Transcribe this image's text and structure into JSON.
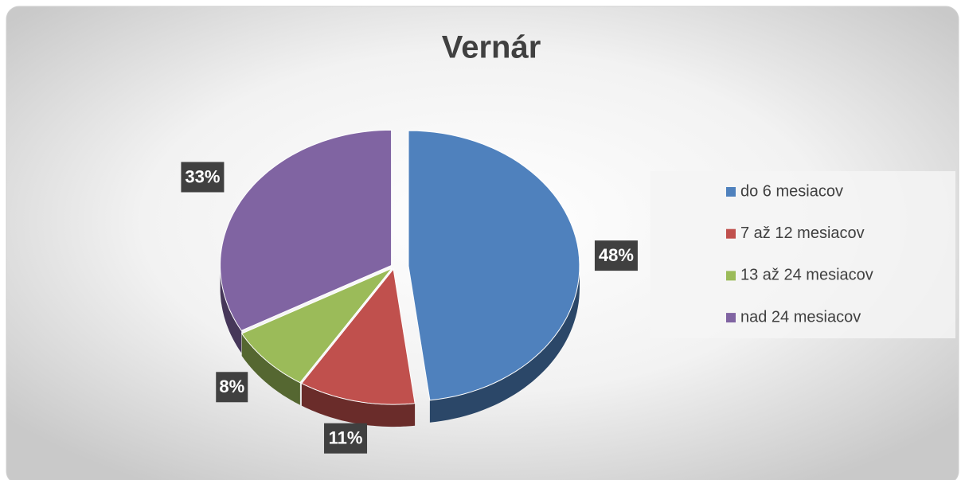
{
  "chart_data": {
    "type": "pie",
    "title": "Vernár",
    "categories": [
      "do 6 mesiacov",
      "7 až 12 mesiacov",
      "13 až 24 mesiacov",
      "nad 24 mesiacov"
    ],
    "values": [
      48,
      11,
      8,
      33
    ],
    "value_labels": [
      "48%",
      "11%",
      "8%",
      "33%"
    ],
    "colors": [
      "#4f81bd",
      "#c0504d",
      "#9bbb59",
      "#8064a2"
    ],
    "legend": "right"
  }
}
